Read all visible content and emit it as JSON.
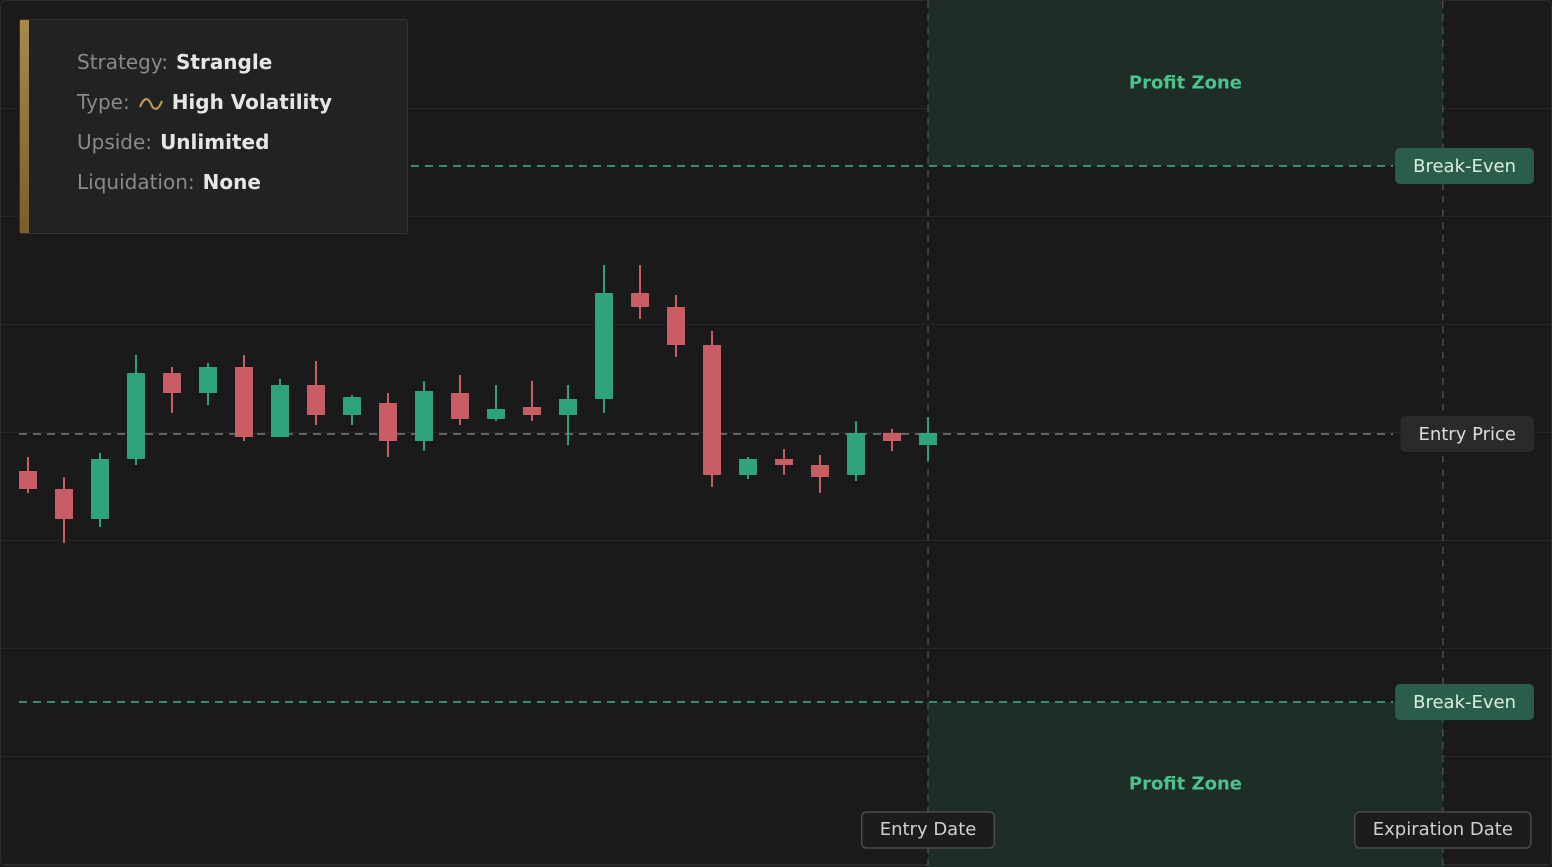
{
  "chart_data": {
    "type": "candlestick",
    "ylim": [
      0,
      866
    ],
    "xlim": [
      -0.75,
      42.36
    ],
    "categories": [
      null,
      null,
      null,
      null,
      null,
      null,
      null,
      null,
      null,
      null,
      null,
      null,
      null,
      null,
      null,
      null,
      null,
      null,
      null,
      null,
      null,
      null,
      null,
      null,
      null,
      null
    ],
    "up_color": "#2fa37a",
    "down_color": "#c95d66",
    "open": [
      396,
      378,
      348,
      408,
      494,
      474,
      500,
      430,
      482,
      452,
      464,
      426,
      474,
      448,
      460,
      452,
      468,
      574,
      560,
      522,
      392,
      408,
      402,
      392,
      434,
      422
    ],
    "high": [
      410,
      390,
      414,
      512,
      500,
      504,
      512,
      488,
      506,
      472,
      474,
      486,
      492,
      482,
      486,
      482,
      602,
      602,
      572,
      536,
      410,
      418,
      412,
      446,
      438,
      450
    ],
    "low": [
      374,
      324,
      340,
      402,
      454,
      462,
      426,
      430,
      442,
      442,
      410,
      416,
      442,
      446,
      446,
      422,
      454,
      548,
      510,
      380,
      388,
      392,
      374,
      386,
      416,
      406
    ],
    "close": [
      378,
      348,
      408,
      494,
      474,
      500,
      430,
      482,
      452,
      470,
      426,
      476,
      448,
      458,
      452,
      468,
      574,
      560,
      522,
      392,
      408,
      402,
      390,
      434,
      426,
      434
    ],
    "reference_lines": [
      {
        "label": "Break-Even",
        "value": 701,
        "color": "#3fb58a"
      },
      {
        "label": "Entry Price",
        "value": 433,
        "color": "#7a7a7a"
      },
      {
        "label": "Break-Even",
        "value": 165,
        "color": "#3fb58a"
      }
    ],
    "date_lines": [
      {
        "label": "Entry Date",
        "x": 25
      },
      {
        "label": "Expiration Date",
        "x": 39.3
      }
    ],
    "zones": [
      {
        "label": "Profit Zone",
        "from": 701,
        "to": 866
      },
      {
        "label": "Profit Zone",
        "from": 0,
        "to": 165
      }
    ]
  },
  "strategy_panel": {
    "items": [
      {
        "label": "Strategy:",
        "value": "Strangle"
      },
      {
        "label": "Type:",
        "value": "High Volatility"
      },
      {
        "label": "Upside:",
        "value": "Unlimited"
      },
      {
        "label": "Liquidation:",
        "value": "None"
      }
    ]
  }
}
